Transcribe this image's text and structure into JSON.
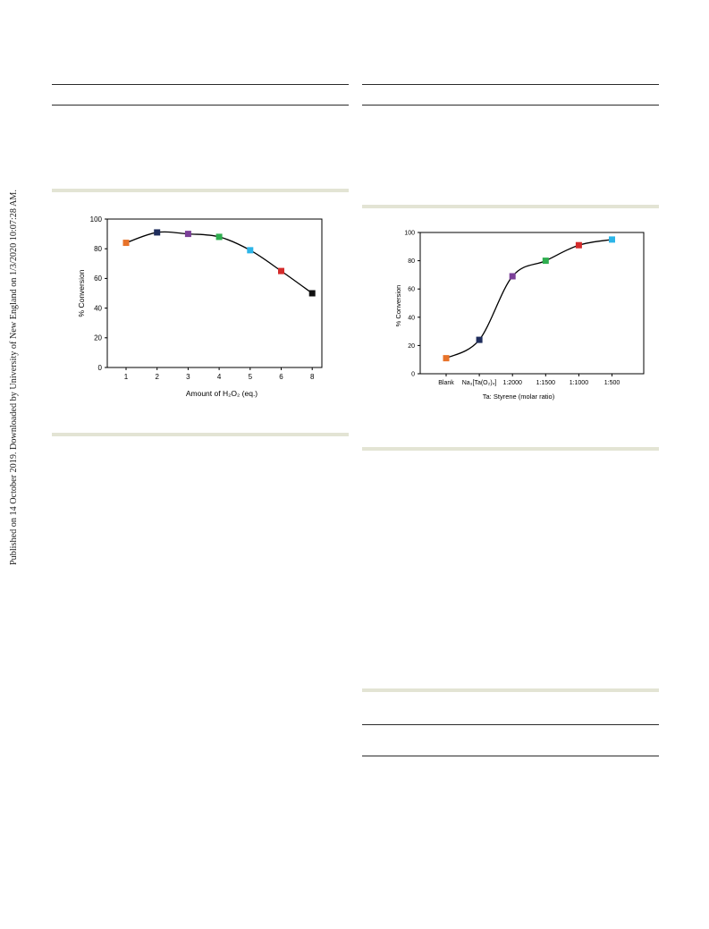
{
  "watermark": {
    "text": "Published on 14 October 2019. Downloaded by University of New England on 1/3/2020 10:07:28 AM."
  },
  "chart_data": [
    {
      "type": "line",
      "title": "",
      "xlabel": "Amount of H₂O₂ (eq.)",
      "ylabel": "% Conversion",
      "categories": [
        "1",
        "2",
        "3",
        "4",
        "5",
        "6",
        "8"
      ],
      "values": [
        84,
        91,
        90,
        88,
        79,
        65,
        50
      ],
      "marker_colors": [
        "#e8732a",
        "#1f2d5c",
        "#7b3f98",
        "#2eae4f",
        "#2cb5e8",
        "#d42b2b",
        "#111111"
      ],
      "ylim": [
        0,
        100
      ],
      "yticks": [
        "0",
        "20",
        "40",
        "60",
        "80",
        "100"
      ],
      "grid": false,
      "legend": "none"
    },
    {
      "type": "line",
      "title": "",
      "xlabel": "Ta: Styrene (molar ratio)",
      "ylabel": "% Conversion",
      "categories": [
        "Blank",
        "Na₃[Ta(O₂)₄]",
        "1:2000",
        "1:1500",
        "1:1000",
        "1:500"
      ],
      "values": [
        11,
        24,
        69,
        80,
        91,
        95
      ],
      "marker_colors": [
        "#e8732a",
        "#1f2d5c",
        "#7b3f98",
        "#2eae4f",
        "#d42b2b",
        "#2cb5e8"
      ],
      "ylim": [
        0,
        100
      ],
      "yticks": [
        "0",
        "20",
        "40",
        "60",
        "80",
        "100"
      ],
      "grid": false,
      "legend": "none"
    }
  ]
}
